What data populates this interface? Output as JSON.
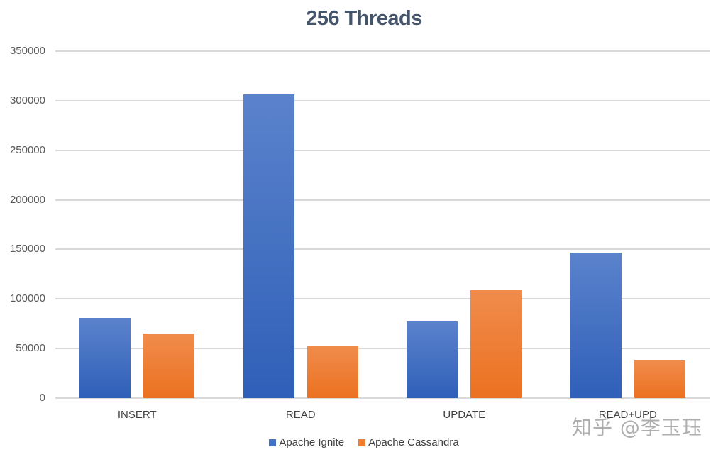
{
  "chart_data": {
    "type": "bar",
    "title": "256 Threads",
    "xlabel": "",
    "ylabel": "",
    "categories": [
      "INSERT",
      "READ",
      "UPDATE",
      "READ+UPD"
    ],
    "series": [
      {
        "name": "Apache Ignite",
        "color": "#4472c4",
        "values": [
          81000,
          306000,
          77000,
          147000
        ]
      },
      {
        "name": "Apache Cassandra",
        "color": "#ed7d31",
        "values": [
          65500,
          52500,
          108500,
          38000
        ]
      }
    ],
    "ylim": [
      0,
      350000
    ],
    "yticks": [
      "0",
      "50000",
      "100000",
      "150000",
      "200000",
      "250000",
      "300000",
      "350000"
    ],
    "grid": true,
    "legend_position": "bottom"
  },
  "watermark": "知乎 @李玉珏"
}
